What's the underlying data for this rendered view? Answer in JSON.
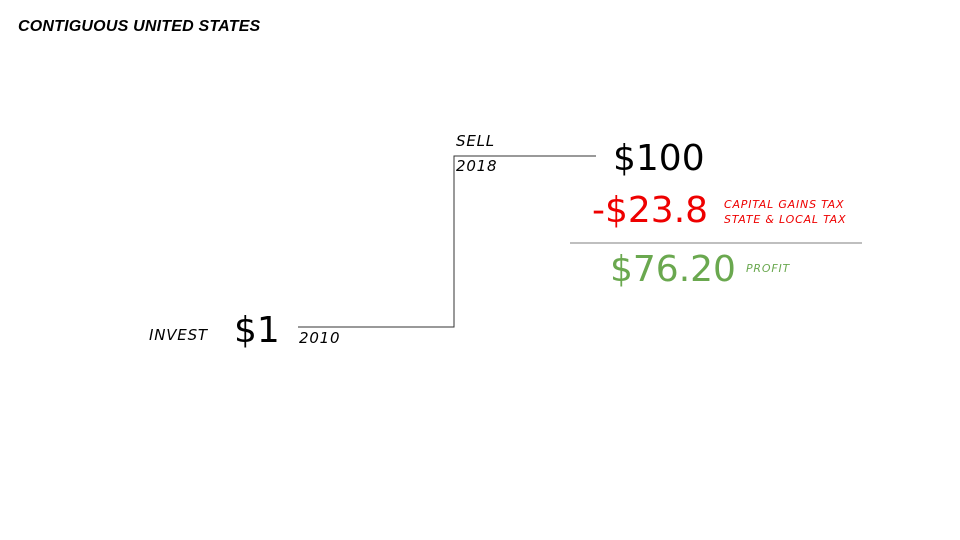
{
  "title": "CONTIGUOUS UNITED STATES",
  "invest": {
    "label": "INVEST",
    "amount": "$1",
    "year": "2010"
  },
  "sell": {
    "label": "SELL",
    "year": "2018",
    "amount": "$100"
  },
  "tax": {
    "amount": "-$23.8",
    "line1": "CAPITAL GAINS TAX",
    "line2": "STATE & LOCAL TAX"
  },
  "profit": {
    "amount": "$76.20",
    "label": "PROFIT"
  },
  "colors": {
    "text": "#000000",
    "tax": "#ee0000",
    "profit": "#6aa84f",
    "line": "#333333",
    "divider": "#999999"
  }
}
